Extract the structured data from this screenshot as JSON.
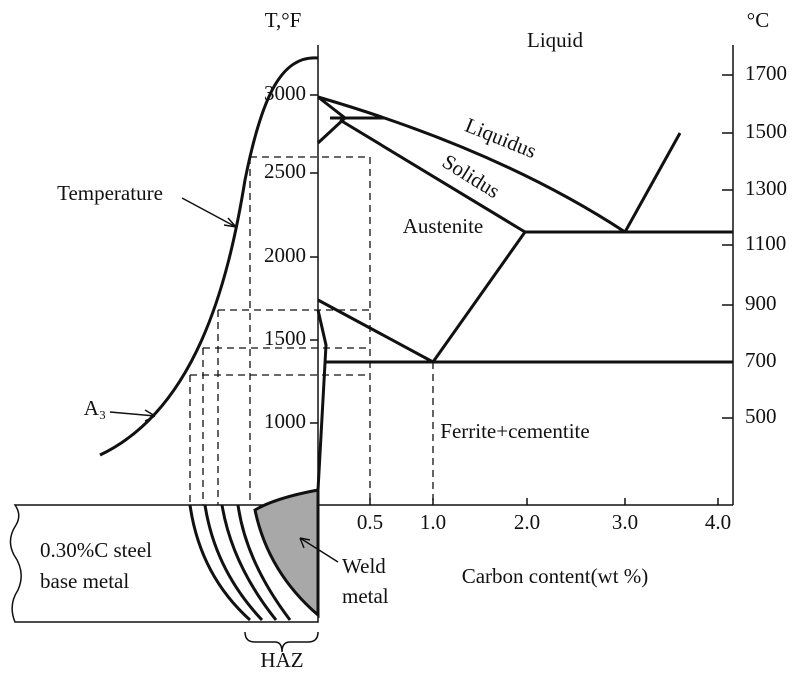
{
  "axes": {
    "left_unit": "T,°F",
    "right_unit": "°C",
    "left_ticks": [
      "3000",
      "2500",
      "2000",
      "1500",
      "1000"
    ],
    "right_ticks": [
      "1700",
      "1500",
      "1300",
      "1100",
      "900",
      "700",
      "500"
    ],
    "x_ticks": [
      "0.5",
      "1.0",
      "2.0",
      "3.0",
      "4.0"
    ],
    "x_label": "Carbon content(wt %)"
  },
  "regions": {
    "liquid": "Liquid",
    "austenite": "Austenite",
    "ferrite": "Ferrite+cementite"
  },
  "curves": {
    "liquidus": "Liquidus",
    "solidus": "Solidus",
    "temperature": "Temperature",
    "a3": "A₃"
  },
  "weld": {
    "base_metal": [
      "0.30%C steel",
      "base metal"
    ],
    "weld_metal": [
      "Weld",
      "metal"
    ],
    "haz": "HAZ"
  }
}
